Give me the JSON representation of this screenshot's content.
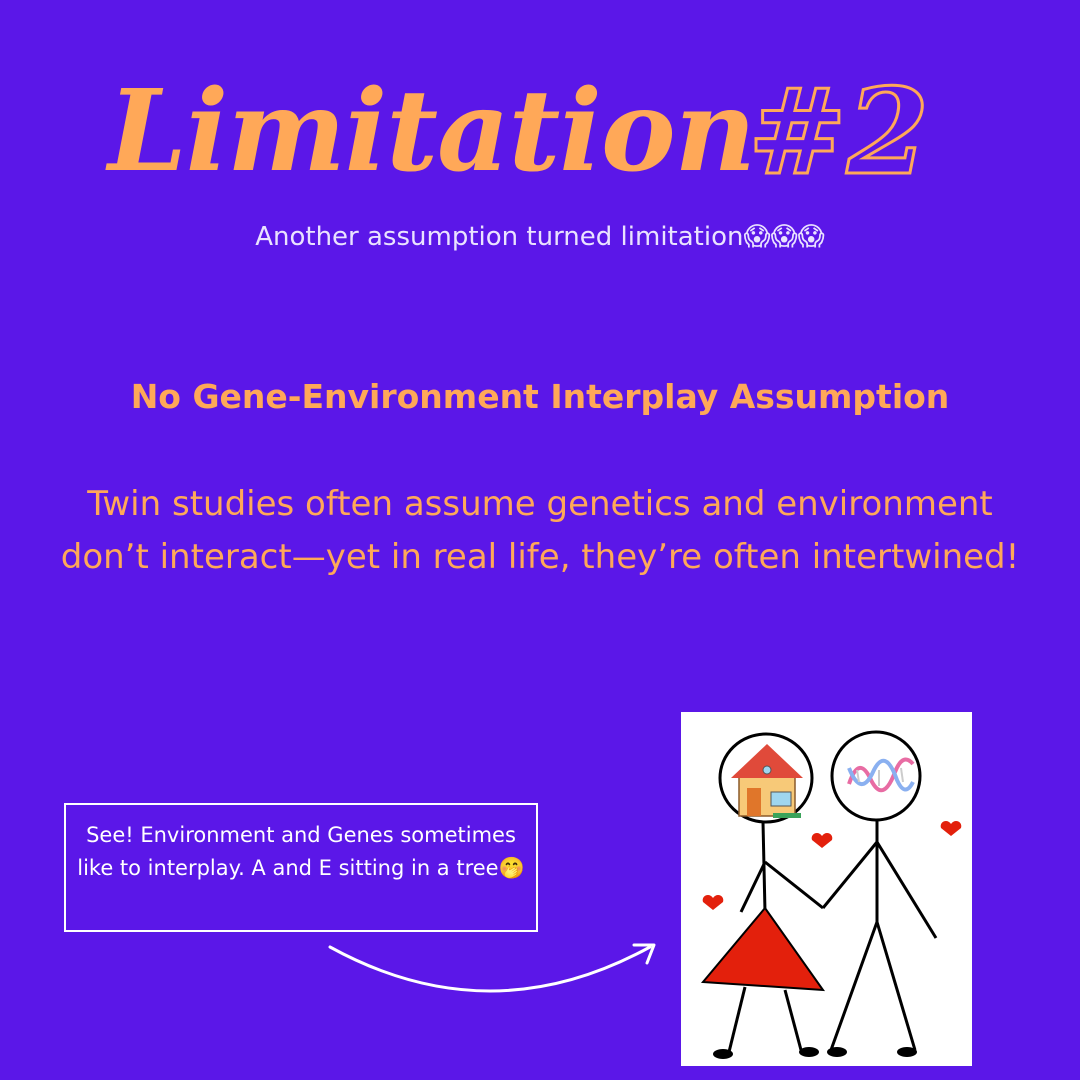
{
  "title": {
    "word": "Limitation",
    "number": "#2"
  },
  "subtitle": "Another assumption turned limitation😱😱😱",
  "heading": "No Gene-Environment Interplay Assumption",
  "body": "Twin studies often assume genetics and environment don’t interact—yet in real life, they’re often intertwined!",
  "callout": "See! Environment and Genes sometimes like to interplay. A and E sitting in a tree🤭",
  "colors": {
    "background": "#5b17e8",
    "accent": "#ffa858",
    "white": "#ffffff",
    "dress": "#e3200c",
    "heart": "#e3200c"
  },
  "illustration": {
    "icons": [
      "house-icon",
      "dna-icon",
      "heart-icon",
      "stick-figure-icon"
    ]
  }
}
